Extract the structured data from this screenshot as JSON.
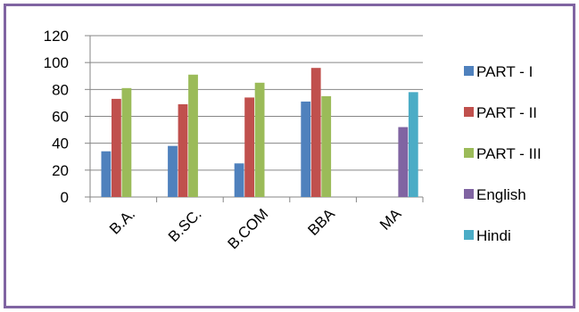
{
  "chart_data": {
    "type": "bar",
    "title": "",
    "xlabel": "",
    "ylabel": "",
    "categories": [
      "B.A.",
      "B.SC.",
      "B.COM",
      "BBA",
      "MA"
    ],
    "series": [
      {
        "name": "PART - I",
        "color": "#4f81bd",
        "values": [
          34,
          38,
          25,
          71,
          null
        ]
      },
      {
        "name": "PART - II",
        "color": "#c0504d",
        "values": [
          73,
          69,
          74,
          96,
          null
        ]
      },
      {
        "name": "PART - III",
        "color": "#9bbb59",
        "values": [
          81,
          91,
          85,
          75,
          null
        ]
      },
      {
        "name": "English",
        "color": "#8064a2",
        "values": [
          null,
          null,
          null,
          null,
          52
        ]
      },
      {
        "name": "Hindi",
        "color": "#4bacc6",
        "values": [
          null,
          null,
          null,
          null,
          78
        ]
      }
    ],
    "ylim": [
      0,
      120
    ],
    "yticks": [
      0,
      20,
      40,
      60,
      80,
      100,
      120
    ],
    "grid": true,
    "legend_position": "right"
  },
  "frame_color": "#8064a2"
}
